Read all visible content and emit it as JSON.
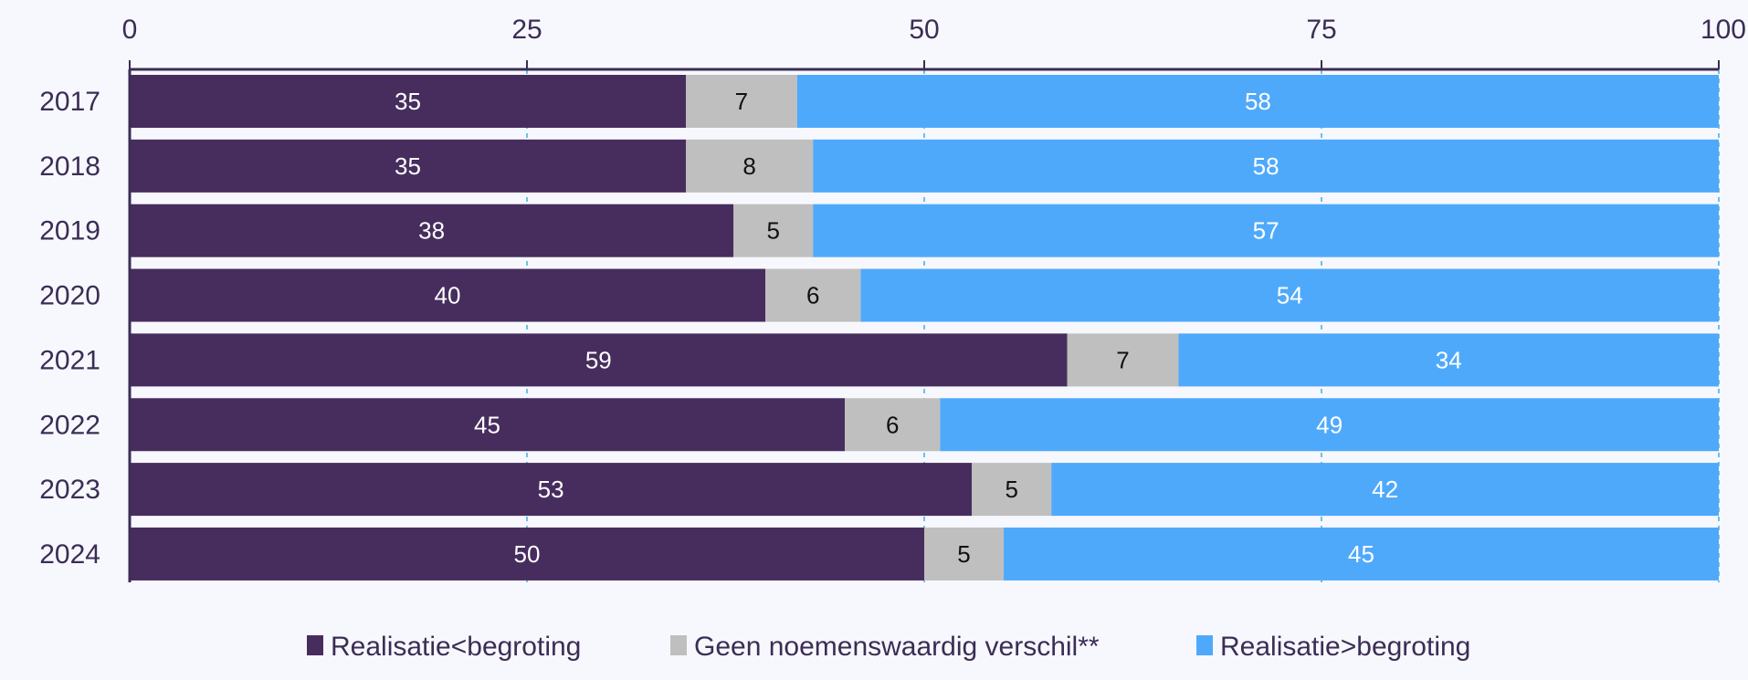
{
  "chart_data": {
    "type": "bar",
    "orientation": "horizontal",
    "stacked": true,
    "title": "",
    "xlabel": "",
    "ylabel": "",
    "xlim": [
      0,
      100
    ],
    "xticks": [
      "0",
      "25",
      "50",
      "75",
      "100"
    ],
    "xtick_values": [
      0,
      25,
      50,
      75,
      100
    ],
    "x_axis_position": "top",
    "grid": "vertical dashed",
    "legend_position": "bottom",
    "categories": [
      "2017",
      "2018",
      "2019",
      "2020",
      "2021",
      "2022",
      "2023",
      "2024"
    ],
    "series": [
      {
        "name": "Realisatie<begroting",
        "color": "#472d5e",
        "label_color": "#ffffff",
        "values": [
          35,
          35,
          38,
          40,
          59,
          45,
          53,
          50
        ],
        "labels": [
          "35",
          "35",
          "38",
          "40",
          "59",
          "45",
          "53",
          "50"
        ]
      },
      {
        "name": "Geen noemenswaardig verschil**",
        "color": "#bfbfbf",
        "label_color": "#111111",
        "values": [
          7,
          8,
          5,
          6,
          7,
          6,
          5,
          5
        ],
        "labels": [
          "7",
          "8",
          "5",
          "6",
          "7",
          "6",
          "5",
          "5"
        ]
      },
      {
        "name": "Realisatie>begroting",
        "color": "#4fa9fb",
        "label_color": "#ffffff",
        "values": [
          58,
          58,
          57,
          54,
          34,
          49,
          42,
          45
        ],
        "labels": [
          "58",
          "58",
          "57",
          "54",
          "34",
          "49",
          "42",
          "45"
        ]
      }
    ],
    "axis_color": "#3b2d55",
    "grid_color": "#6ec0e8"
  }
}
